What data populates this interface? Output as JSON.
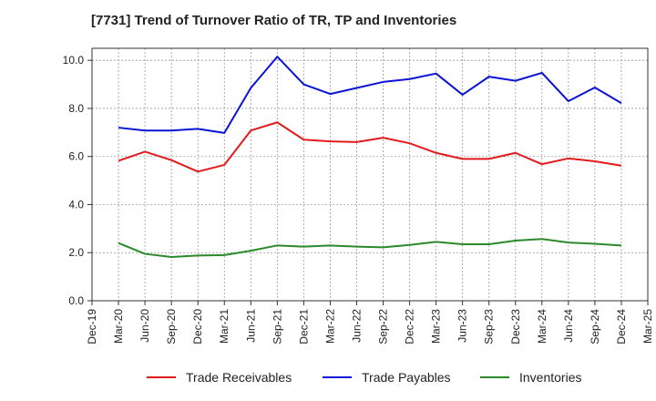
{
  "chart_data": {
    "type": "line",
    "title": "[7731]  Trend of Turnover Ratio of TR, TP and Inventories",
    "xlabel": "",
    "ylabel": "",
    "x": [
      "Dec-19",
      "Mar-20",
      "Jun-20",
      "Sep-20",
      "Dec-20",
      "Mar-21",
      "Jun-21",
      "Sep-21",
      "Dec-21",
      "Mar-22",
      "Jun-22",
      "Sep-22",
      "Dec-22",
      "Mar-23",
      "Jun-23",
      "Sep-23",
      "Dec-23",
      "Mar-24",
      "Jun-24",
      "Sep-24",
      "Dec-24",
      "Mar-25"
    ],
    "ylim": [
      0,
      10.5
    ],
    "yticks": [
      "0.0",
      "2.0",
      "4.0",
      "6.0",
      "8.0",
      "10.0"
    ],
    "grid": true,
    "legend": "bottom",
    "series": [
      {
        "name": "Trade Receivables",
        "color": "#e31a1c",
        "values": [
          null,
          5.82,
          6.2,
          5.85,
          5.37,
          5.65,
          7.08,
          7.42,
          6.7,
          6.63,
          6.6,
          6.78,
          6.55,
          6.15,
          5.9,
          5.9,
          6.15,
          5.68,
          5.92,
          5.8,
          5.62,
          null
        ]
      },
      {
        "name": "Trade Payables",
        "color": "#0a14d4",
        "values": [
          null,
          7.2,
          7.08,
          7.08,
          7.15,
          6.98,
          8.85,
          10.15,
          9.0,
          8.6,
          8.85,
          9.1,
          9.22,
          9.45,
          8.57,
          9.32,
          9.15,
          9.48,
          8.3,
          8.87,
          8.22,
          null
        ]
      },
      {
        "name": "Inventories",
        "color": "#2a8a2a",
        "values": [
          null,
          2.4,
          1.95,
          1.82,
          1.88,
          1.9,
          2.08,
          2.3,
          2.25,
          2.3,
          2.25,
          2.22,
          2.32,
          2.45,
          2.35,
          2.35,
          2.5,
          2.57,
          2.42,
          2.37,
          2.3,
          null
        ]
      }
    ]
  }
}
